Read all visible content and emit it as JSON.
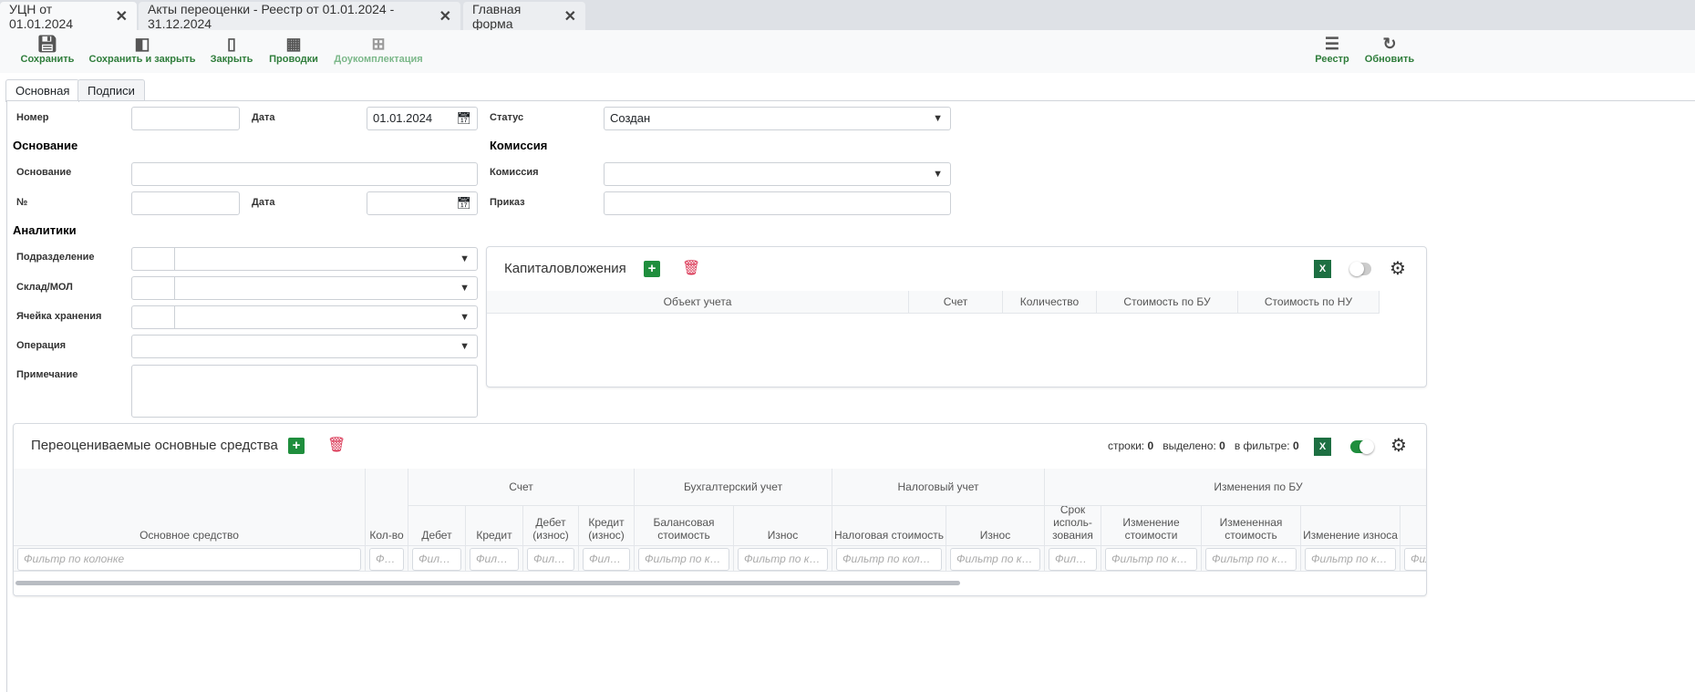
{
  "window_tabs": [
    {
      "label": "УЦН от 01.01.2024",
      "active": true
    },
    {
      "label": "Акты переоценки - Реестр от 01.01.2024 - 31.12.2024"
    },
    {
      "label": "Главная форма"
    }
  ],
  "toolbar": {
    "save": "Сохранить",
    "save_close": "Сохранить и закрыть",
    "close": "Закрыть",
    "postings": "Проводки",
    "completion": "Доукомплектация",
    "registry": "Реестр",
    "refresh": "Обновить"
  },
  "form_tabs": [
    "Основная",
    "Подписи"
  ],
  "form": {
    "number_label": "Номер",
    "number_value": "",
    "date_label": "Дата",
    "date_value": "01.01.2024",
    "status_label": "Статус",
    "status_value": "Создан",
    "basis_heading": "Основание",
    "basis_label": "Основание",
    "basis_no_label": "№",
    "basis_date_label": "Дата",
    "commission_heading": "Комиссия",
    "commission_label": "Комиссия",
    "order_label": "Приказ",
    "analytics_heading": "Аналитики",
    "division_label": "Подразделение",
    "warehouse_label": "Склад/МОЛ",
    "cell_label": "Ячейка хранения",
    "operation_label": "Операция",
    "note_label": "Примечание"
  },
  "capital": {
    "title": "Капиталовложения",
    "columns": [
      "Объект учета",
      "Счет",
      "Количество",
      "Стоимость по БУ",
      "Стоимость по НУ"
    ],
    "toggle_on": false
  },
  "assets": {
    "title": "Переоцениваемые основные средства",
    "rows_label": "строки:",
    "rows": "0",
    "selected_label": "выделено:",
    "selected": "0",
    "filtered_label": "в фильтре:",
    "filtered": "0",
    "toggle_on": true,
    "groups": [
      "Счет",
      "Бухгалтерский учет",
      "Налоговый учет",
      "Изменения по БУ"
    ],
    "columns": [
      "Основное средство",
      "Кол-во",
      "Дебет",
      "Кредит",
      "Дебет (износ)",
      "Кредит (износ)",
      "Балансовая стоимость",
      "Износ",
      "Налоговая стоимость",
      "Износ",
      "Срок исполь-зования",
      "Изменение стоимости",
      "Измененная стоимость",
      "Изменение износа",
      "Из"
    ],
    "filter_placeholder": "Фильтр по колонке"
  },
  "excel_label": "X"
}
